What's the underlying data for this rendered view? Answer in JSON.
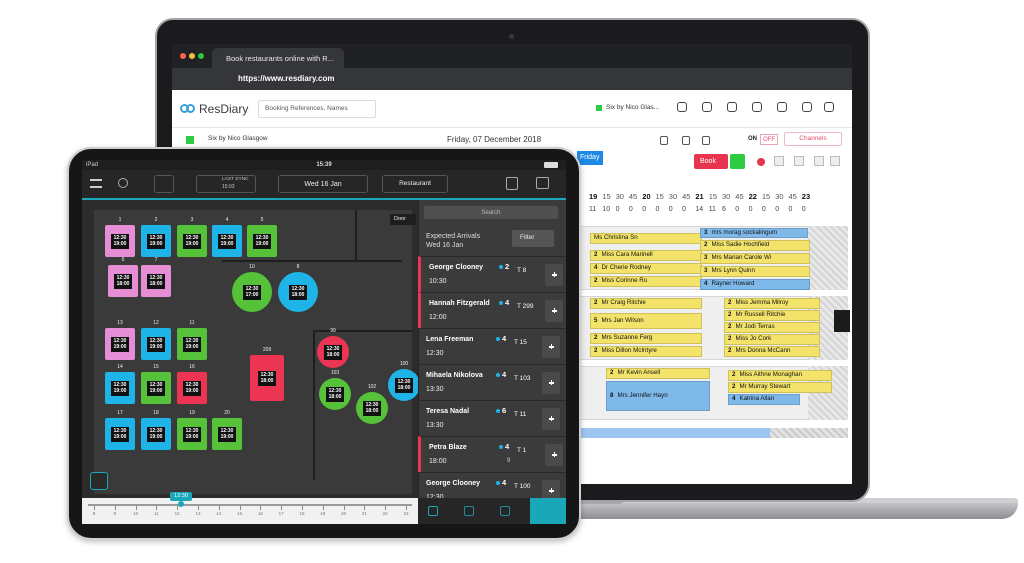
{
  "laptop": {
    "tab_title": "Book restaurants online with R...",
    "url": "https://www.resdiary.com",
    "logo": "ResDiary",
    "search_placeholder": "Booking References, Names",
    "venue_short": "Six by Nico Glas...",
    "venue": "Six by Nico Glasgow",
    "date": "Friday, 07 December 2018",
    "toggle_on": "ON",
    "toggle_off": "OFF",
    "channels": "Channels",
    "book": "Book",
    "day_tab": "Friday",
    "hours": [
      19,
      15,
      30,
      45,
      20,
      15,
      30,
      45,
      21,
      15,
      30,
      45,
      22,
      15,
      30,
      45,
      23
    ],
    "counts": [
      11,
      10,
      0,
      0,
      0,
      0,
      0,
      0,
      14,
      11,
      6,
      0,
      0,
      0,
      0,
      0,
      0
    ],
    "bookings": [
      {
        "name": "Ms Christina Sn"
      },
      {
        "covers": 2,
        "name": "Miss Cara Marinell"
      },
      {
        "covers": 4,
        "name": "Dr Cherie Rodney"
      },
      {
        "covers": 2,
        "name": "Miss Corinne Ru"
      },
      {
        "covers": 2,
        "name": "Mr Craig Ritchie"
      },
      {
        "covers": 5,
        "name": "Mrs Jan Wilson"
      },
      {
        "covers": 2,
        "name": "Mrs Suzanne Ferg"
      },
      {
        "covers": 2,
        "name": "Miss Dillon McIntyre"
      },
      {
        "covers": 2,
        "name": "Mr Kevin Ansell"
      },
      {
        "covers": 8,
        "name": "Mrs Jennifer Hayn"
      },
      {
        "covers": 3,
        "name": "mrs morag sockalingum"
      },
      {
        "covers": 2,
        "name": "Miss Sadie Hochfield"
      },
      {
        "covers": 3,
        "name": "Mrs Marian Carole Wi"
      },
      {
        "covers": 3,
        "name": "Mrs Lynn Quinn"
      },
      {
        "covers": 4,
        "name": "Rayner Howard"
      },
      {
        "covers": 2,
        "name": "Miss Jemma Milroy"
      },
      {
        "covers": 2,
        "name": "Mr Russell Ritchie"
      },
      {
        "covers": 2,
        "name": "Mr Jodi Terras"
      },
      {
        "covers": 2,
        "name": "Miss Jo Cork"
      },
      {
        "covers": 2,
        "name": "Mrs Donna McCann"
      },
      {
        "covers": 2,
        "name": "Miss Aithne Monaghan"
      },
      {
        "covers": 2,
        "name": "Mr Murray Stewart"
      },
      {
        "covers": 4,
        "name": "Katrina Allan"
      }
    ]
  },
  "ipad": {
    "device": "iPad",
    "clock": "15:39",
    "sync_label": "LAST SYNC",
    "sync_time": "15:03",
    "date": "Wed 16 Jan",
    "area": "Restaurant",
    "door": "Door",
    "search": "Search",
    "arrivals_title": "Expected Arrivals",
    "arrivals_date": "Wed 16 Jan",
    "filter": "Filter",
    "tables": [
      {
        "label": "1",
        "times": [
          "12:30",
          "19:00"
        ]
      },
      {
        "label": "2",
        "times": [
          "12:30",
          "19:00"
        ]
      },
      {
        "label": "3",
        "times": [
          "12:30",
          "19:00"
        ]
      },
      {
        "label": "4",
        "times": [
          "12:30",
          "19:00"
        ]
      },
      {
        "label": "5",
        "times": [
          "12:30",
          "19:00"
        ]
      },
      {
        "label": "6",
        "times": [
          "12:30",
          "18:00"
        ]
      },
      {
        "label": "7",
        "times": [
          "12:30",
          "18:00"
        ]
      },
      {
        "label": "10",
        "times": [
          "12:30",
          "17:00"
        ]
      },
      {
        "label": "8",
        "times": [
          "12:30",
          "18:00"
        ]
      },
      {
        "label": "13",
        "times": [
          "12:30",
          "19:00"
        ]
      },
      {
        "label": "12",
        "times": [
          "12:30",
          "19:00"
        ]
      },
      {
        "label": "11",
        "times": [
          "12:30",
          "19:00"
        ]
      },
      {
        "label": "14",
        "times": [
          "12:30",
          "19:00"
        ]
      },
      {
        "label": "15",
        "times": [
          "12:30",
          "19:00"
        ]
      },
      {
        "label": "16",
        "times": [
          "12:30",
          "19:00"
        ]
      },
      {
        "label": "17",
        "times": [
          "12:30",
          "19:00"
        ]
      },
      {
        "label": "18",
        "times": [
          "12:30",
          "19:00"
        ]
      },
      {
        "label": "19",
        "times": [
          "12:30",
          "19:00"
        ]
      },
      {
        "label": "20",
        "times": [
          "12:30",
          "19:00"
        ]
      },
      {
        "label": "209",
        "times": [
          "12:30",
          "18:00"
        ]
      },
      {
        "label": "99",
        "times": [
          "12:30",
          "18:00"
        ]
      },
      {
        "label": "103",
        "times": [
          "12:30",
          "18:00"
        ]
      },
      {
        "label": "102",
        "times": [
          "12:30",
          "18:00"
        ]
      },
      {
        "label": "100",
        "times": [
          "12:30",
          "18:00"
        ]
      }
    ],
    "arrivals": [
      {
        "name": "George Clooney",
        "covers": 2,
        "time": "10:30",
        "table": "T 8"
      },
      {
        "name": "Hannah Fitzgerald",
        "covers": 4,
        "time": "12:00",
        "table": "T 299"
      },
      {
        "name": "Lena Freeman",
        "covers": 4,
        "time": "12:30",
        "table": "T 15"
      },
      {
        "name": "Mihaela Nikolova",
        "covers": 4,
        "time": "13:30",
        "table": "T 103"
      },
      {
        "name": "Teresa Nadal",
        "covers": 6,
        "time": "13:30",
        "table": "T 11"
      },
      {
        "name": "Petra Blaze",
        "covers": 4,
        "time": "18:00",
        "table": "T 1",
        "extra": "9"
      },
      {
        "name": "George Clooney",
        "covers": 4,
        "time": "12:30",
        "table": "T 100"
      }
    ],
    "timeline_now": "12:30",
    "timeline_hours": [
      8,
      9,
      10,
      11,
      12,
      13,
      14,
      15,
      16,
      17,
      18,
      19,
      20,
      21,
      22,
      23
    ]
  }
}
